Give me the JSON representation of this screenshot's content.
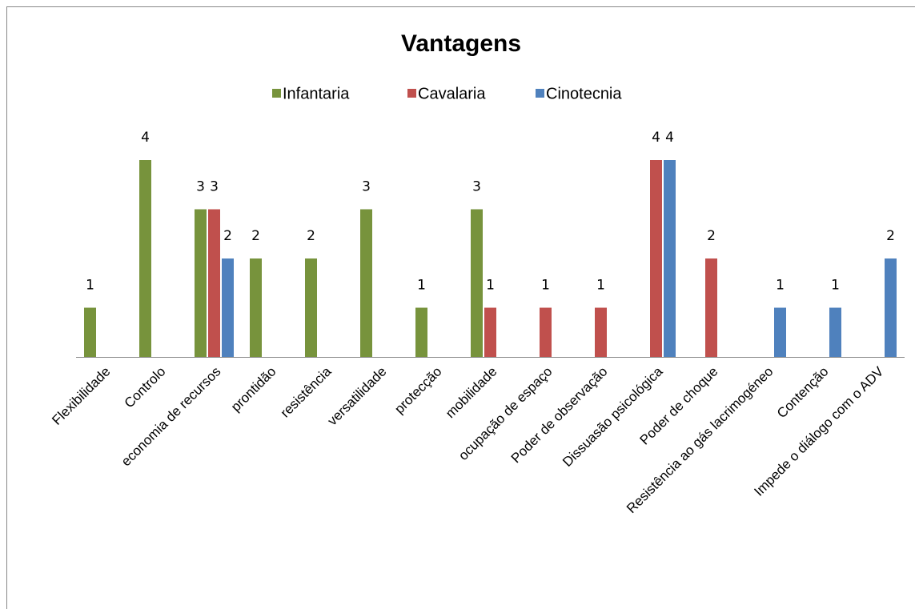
{
  "chart_data": {
    "type": "bar",
    "title": "Vantagens",
    "categories": [
      "Flexibilidade",
      "Controlo",
      "economia de recursos",
      "prontidão",
      "resistência",
      "versatilidade",
      "protecção",
      "mobilidade",
      "ocupação de espaço",
      "Poder de observação",
      "Dissuasão psicológica",
      "Poder de choque",
      "Resistência ao gás lacrimogéneo",
      "Contenção",
      "Impede o diálogo com o ADV"
    ],
    "series": [
      {
        "name": "Infantaria",
        "color": "#77933c",
        "values": [
          1,
          4,
          3,
          2,
          2,
          3,
          1,
          3,
          null,
          null,
          null,
          null,
          null,
          null,
          null
        ]
      },
      {
        "name": "Cavalaria",
        "color": "#c0504d",
        "values": [
          null,
          null,
          3,
          null,
          null,
          null,
          null,
          1,
          1,
          1,
          4,
          2,
          null,
          null,
          null
        ]
      },
      {
        "name": "Cinotecnia",
        "color": "#4f81bd",
        "values": [
          null,
          null,
          2,
          null,
          null,
          null,
          null,
          null,
          null,
          null,
          4,
          null,
          1,
          1,
          2
        ]
      }
    ],
    "legend": "top"
  }
}
